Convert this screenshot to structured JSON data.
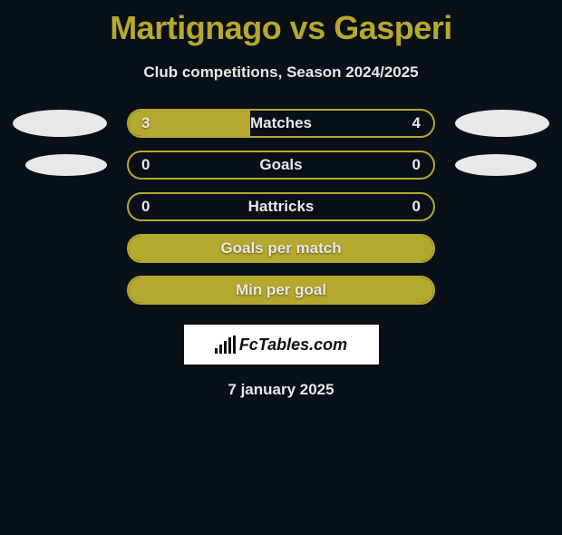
{
  "title": "Martignago vs Gasperi",
  "subtitle": "Club competitions, Season 2024/2025",
  "date": "7 january 2025",
  "logo_text": "FcTables.com",
  "colors": {
    "background": "#0a1018",
    "accent": "#b5a82e",
    "text_light": "#e8e8e8",
    "ellipse": "#e8e8e8",
    "logo_bg": "#ffffff"
  },
  "rows": [
    {
      "label": "Matches",
      "left_value": "3",
      "right_value": "4",
      "left_fill_pct": 40,
      "right_fill_pct": 0,
      "show_left_ellipse": true,
      "show_right_ellipse": true,
      "ellipse_size": "normal"
    },
    {
      "label": "Goals",
      "left_value": "0",
      "right_value": "0",
      "left_fill_pct": 0,
      "right_fill_pct": 0,
      "show_left_ellipse": true,
      "show_right_ellipse": true,
      "ellipse_size": "small"
    },
    {
      "label": "Hattricks",
      "left_value": "0",
      "right_value": "0",
      "left_fill_pct": 0,
      "right_fill_pct": 0,
      "show_left_ellipse": false,
      "show_right_ellipse": false,
      "ellipse_size": "normal"
    },
    {
      "label": "Goals per match",
      "left_value": "",
      "right_value": "",
      "left_fill_pct": 100,
      "right_fill_pct": 0,
      "show_left_ellipse": false,
      "show_right_ellipse": false,
      "ellipse_size": "normal",
      "full_fill": true
    },
    {
      "label": "Min per goal",
      "left_value": "",
      "right_value": "",
      "left_fill_pct": 100,
      "right_fill_pct": 0,
      "show_left_ellipse": false,
      "show_right_ellipse": false,
      "ellipse_size": "normal",
      "full_fill": true
    }
  ]
}
